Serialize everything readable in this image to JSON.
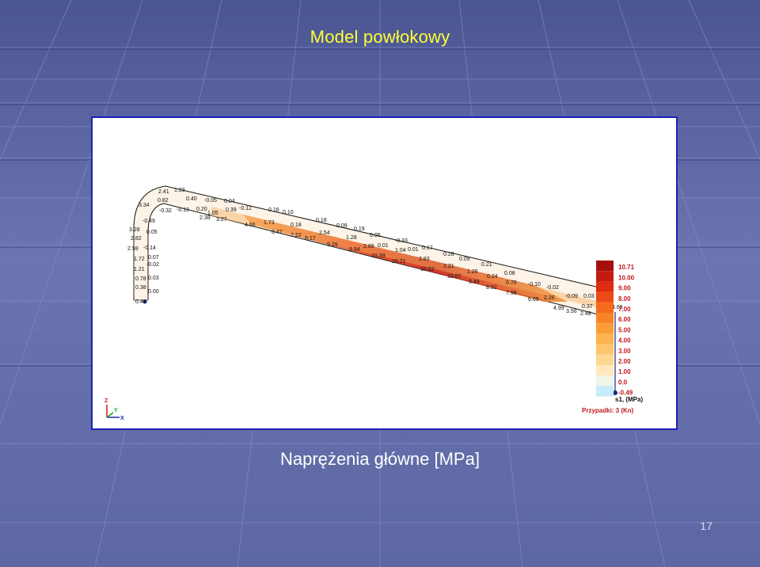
{
  "slide": {
    "title": "Model powłokowy",
    "caption": "Naprężenia główne [MPa]",
    "page_number": "17"
  },
  "colors": {
    "background": "#5f6aa6",
    "title": "#ffff33",
    "caption": "#ffffff",
    "frame_border": "#2020b8"
  },
  "model": {
    "labels": [
      "2.41",
      "1.23",
      "0.40",
      "-0.05",
      "0.04",
      "3.34",
      "0.82",
      "-0.32",
      "-0.13",
      "0.20",
      "-0.12",
      "0.16",
      "0.10",
      "1.05",
      "0.39",
      "2.38",
      "3.27",
      "4.66",
      "1.73",
      "0.18",
      "0.18",
      "0.09",
      "0.19",
      "-0.49",
      "6.47",
      "7.22",
      "8.17",
      "2.54",
      "1.28",
      "0.05",
      "3.28",
      "0.05",
      "2.82",
      "9.29",
      "9.94",
      "2.88",
      "0.01",
      "-0.33",
      "2.59",
      "-0.14",
      "10.39",
      "1.04",
      "0.01",
      "0.17",
      "1.72",
      "0.07",
      "-0.02",
      "10.71",
      "2.83",
      "0.28",
      "0.09",
      "1.21",
      "10.52",
      "2.21",
      "0.21",
      "0.78",
      "0.03",
      "10.07",
      "1.26",
      "0.24",
      "0.08",
      "0.38",
      "9.49",
      "8.92",
      "0.70",
      "-0.10",
      "-0.02",
      "0.00",
      "7.98",
      "6.69",
      "2.26",
      "-0.09",
      "0.03",
      "0.48",
      "4.99",
      "3.56",
      "2.48",
      "0.37",
      "4.65"
    ],
    "axes": {
      "z": "Z",
      "y": "Y",
      "x": "X"
    }
  },
  "legend": {
    "levels": [
      {
        "label": "10.71",
        "color": "#a50f0f"
      },
      {
        "label": "10.00",
        "color": "#c41a10"
      },
      {
        "label": "9.00",
        "color": "#dd2c12"
      },
      {
        "label": "8.00",
        "color": "#ee4a16"
      },
      {
        "label": "7.00",
        "color": "#f56a1c"
      },
      {
        "label": "6.00",
        "color": "#f88424"
      },
      {
        "label": "5.00",
        "color": "#fb9c36"
      },
      {
        "label": "4.00",
        "color": "#fcb24e"
      },
      {
        "label": "3.00",
        "color": "#fdc66c"
      },
      {
        "label": "2.00",
        "color": "#fed790"
      },
      {
        "label": "1.00",
        "color": "#ffe8bb"
      },
      {
        "label": "0.0",
        "color": "#eef6ea"
      },
      {
        "label": "-0.49",
        "color": "#c8ecf8"
      }
    ],
    "quantity": "s1, (MPa)",
    "case": "Przypadki: 3 (Kn)"
  }
}
